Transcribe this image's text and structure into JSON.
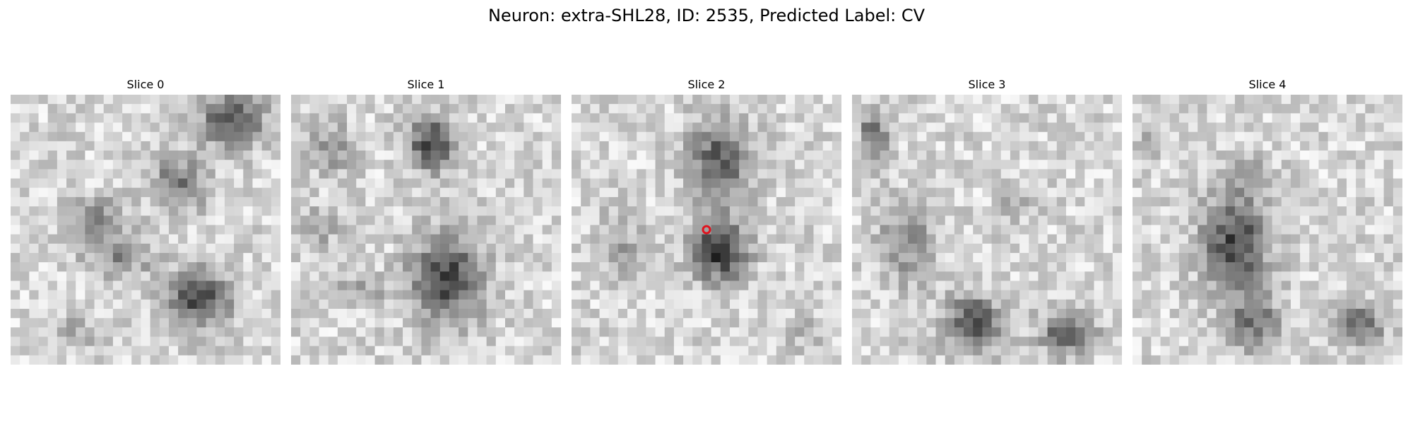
{
  "figure": {
    "title": "Neuron: extra-SHL28, ID: 2535, Predicted Label: CV"
  },
  "slices": [
    {
      "title": "Slice 0",
      "dark_blobs": [
        [
          0.82,
          0.1,
          0.12,
          0.1,
          0.75
        ],
        [
          0.62,
          0.33,
          0.1,
          0.1,
          0.55
        ],
        [
          0.3,
          0.45,
          0.12,
          0.07,
          0.4
        ],
        [
          0.4,
          0.6,
          0.13,
          0.07,
          0.45
        ],
        [
          0.7,
          0.75,
          0.11,
          0.11,
          0.85
        ],
        [
          0.25,
          0.88,
          0.1,
          0.06,
          0.25
        ]
      ],
      "seed": 11
    },
    {
      "title": "Slice 1",
      "dark_blobs": [
        [
          0.52,
          0.18,
          0.09,
          0.1,
          0.8
        ],
        [
          0.58,
          0.68,
          0.13,
          0.16,
          0.85
        ],
        [
          0.15,
          0.2,
          0.08,
          0.1,
          0.35
        ],
        [
          0.25,
          0.72,
          0.1,
          0.06,
          0.3
        ],
        [
          0.1,
          0.5,
          0.07,
          0.08,
          0.3
        ]
      ],
      "seed": 23
    },
    {
      "title": "Slice 2",
      "dark_blobs": [
        [
          0.55,
          0.25,
          0.11,
          0.16,
          0.75
        ],
        [
          0.55,
          0.58,
          0.1,
          0.11,
          0.95
        ],
        [
          0.18,
          0.55,
          0.08,
          0.12,
          0.3
        ],
        [
          0.85,
          0.88,
          0.07,
          0.07,
          0.2
        ]
      ],
      "seed": 37,
      "marker": {
        "x": 0.5,
        "y": 0.5,
        "color": "#e0141e"
      }
    },
    {
      "title": "Slice 3",
      "dark_blobs": [
        [
          0.08,
          0.15,
          0.05,
          0.1,
          0.65
        ],
        [
          0.2,
          0.55,
          0.1,
          0.15,
          0.45
        ],
        [
          0.45,
          0.85,
          0.1,
          0.1,
          0.85
        ],
        [
          0.8,
          0.88,
          0.1,
          0.08,
          0.7
        ],
        [
          0.62,
          0.4,
          0.06,
          0.06,
          0.3
        ]
      ],
      "seed": 41
    },
    {
      "title": "Slice 4",
      "dark_blobs": [
        [
          0.38,
          0.55,
          0.12,
          0.18,
          0.85
        ],
        [
          0.45,
          0.85,
          0.1,
          0.1,
          0.55
        ],
        [
          0.85,
          0.85,
          0.09,
          0.08,
          0.55
        ],
        [
          0.45,
          0.3,
          0.06,
          0.06,
          0.35
        ],
        [
          0.05,
          0.2,
          0.04,
          0.05,
          0.4
        ]
      ],
      "seed": 53
    }
  ]
}
